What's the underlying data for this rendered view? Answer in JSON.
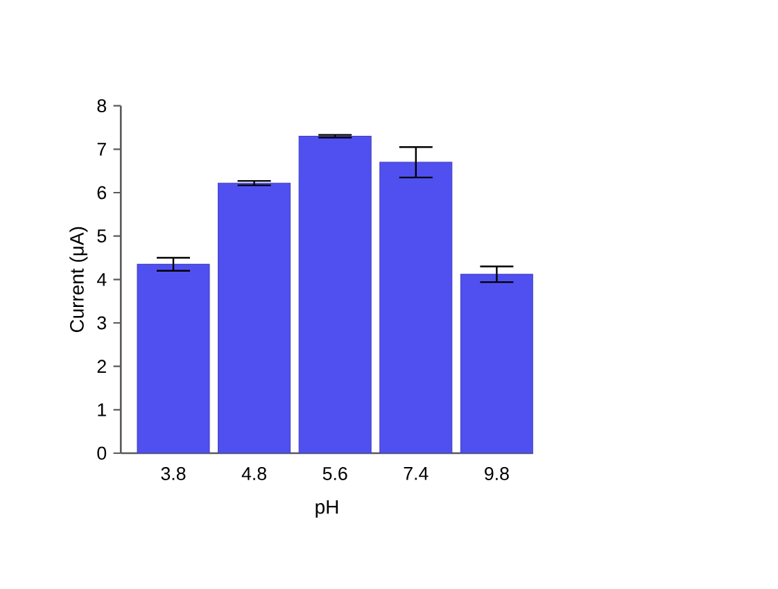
{
  "chart_data": {
    "type": "bar",
    "xlabel": "pH",
    "ylabel": "Current (μA)",
    "categories": [
      "3.8",
      "4.8",
      "5.6",
      "7.4",
      "9.8"
    ],
    "values": [
      4.35,
      6.22,
      7.3,
      6.7,
      4.12
    ],
    "errors": [
      0.15,
      0.05,
      0.03,
      0.35,
      0.18
    ],
    "color": "#5050f0",
    "ylim": [
      0,
      8
    ],
    "yticks": [
      0,
      1,
      2,
      3,
      4,
      5,
      6,
      7,
      8
    ],
    "grid": false
  }
}
